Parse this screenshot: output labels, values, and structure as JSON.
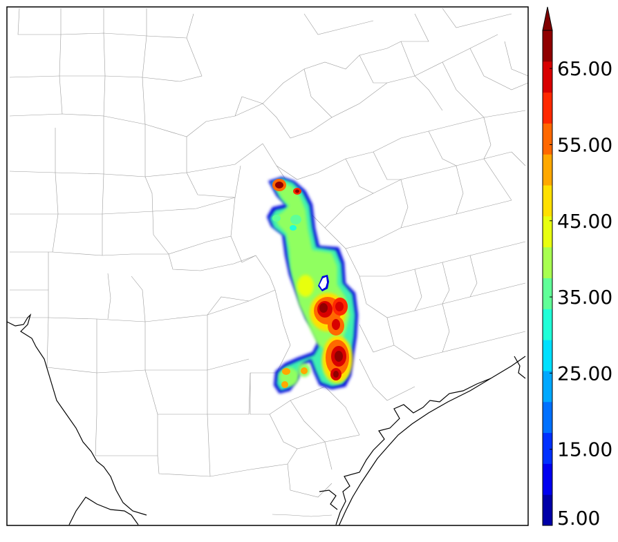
{
  "colorbar": {
    "min": 5,
    "max": 70,
    "extend": "max",
    "colors": [
      "#0000a8",
      "#0000f0",
      "#0030ff",
      "#0070ff",
      "#00a8ff",
      "#00e0ff",
      "#20ffd8",
      "#60ff98",
      "#a8ff50",
      "#e8ff10",
      "#ffe000",
      "#ffa800",
      "#ff6800",
      "#ff2800",
      "#d80000",
      "#900000"
    ],
    "extend_color": "#800000",
    "tick_labels": [
      "5.00",
      "15.00",
      "25.00",
      "35.00",
      "45.00",
      "55.00",
      "65.00"
    ]
  }
}
